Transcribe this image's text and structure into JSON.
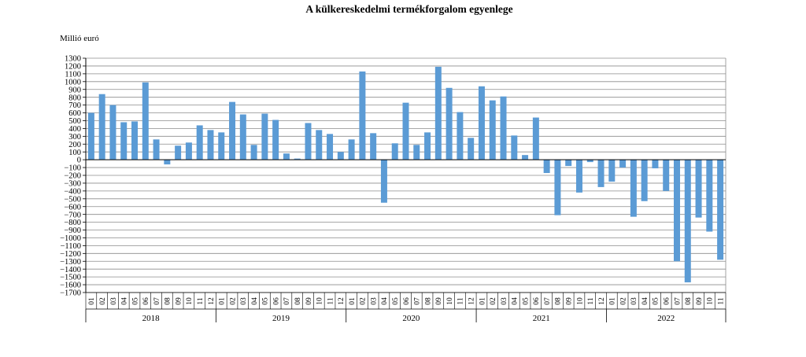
{
  "chart_data": {
    "type": "bar",
    "title": "A külkereskedelmi termékforgalom egyenlege",
    "ylabel": "Millió euró",
    "xlabel": "",
    "ylim": [
      -1700,
      1300
    ],
    "ytick_step": 100,
    "grid": true,
    "legend": "none",
    "bar_color": "#5b9bd5",
    "years": [
      {
        "year": "2018",
        "months": [
          "01",
          "02",
          "03",
          "04",
          "05",
          "06",
          "07",
          "08",
          "09",
          "10",
          "11",
          "12"
        ]
      },
      {
        "year": "2019",
        "months": [
          "01",
          "02",
          "03",
          "04",
          "05",
          "06",
          "07",
          "08",
          "09",
          "10",
          "11",
          "12"
        ]
      },
      {
        "year": "2020",
        "months": [
          "01",
          "02",
          "03",
          "04",
          "05",
          "06",
          "07",
          "08",
          "09",
          "10",
          "11",
          "12"
        ]
      },
      {
        "year": "2021",
        "months": [
          "01",
          "02",
          "03",
          "04",
          "05",
          "06",
          "07",
          "08",
          "09",
          "10",
          "11",
          "12"
        ]
      },
      {
        "year": "2022",
        "months": [
          "01",
          "02",
          "03",
          "04",
          "05",
          "06",
          "07",
          "08",
          "09",
          "10",
          "11"
        ]
      }
    ],
    "values": [
      600,
      840,
      700,
      480,
      490,
      990,
      260,
      -60,
      180,
      220,
      440,
      380,
      350,
      740,
      580,
      190,
      590,
      510,
      80,
      15,
      470,
      380,
      330,
      100,
      260,
      1130,
      340,
      -550,
      210,
      730,
      190,
      350,
      1190,
      920,
      610,
      280,
      940,
      760,
      810,
      310,
      60,
      540,
      -170,
      -710,
      -80,
      -420,
      -30,
      -350,
      -280,
      -100,
      -730,
      -530,
      -110,
      -400,
      -1300,
      -1570,
      -740,
      -920,
      -1280
    ]
  }
}
